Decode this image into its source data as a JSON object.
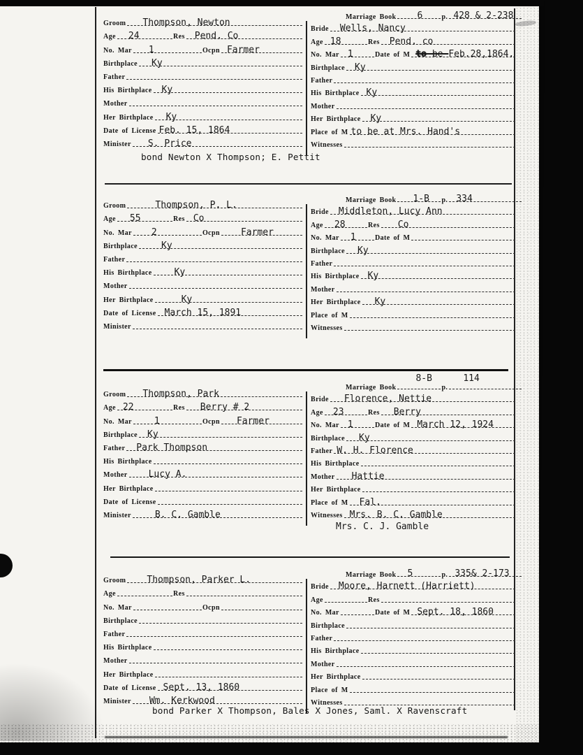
{
  "document_title": "Marriage record index cards",
  "cards": [
    {
      "book": {
        "label": "Marriage Book",
        "number": "6",
        "p_label": "p.",
        "pages": "428 & 2-238",
        "raised": false,
        "num_ind": 28,
        "pages_ind": 6
      },
      "groom_rows": [
        [
          {
            "label": "Groom",
            "value": "Thompson, Newton",
            "ind": 22
          }
        ],
        [
          {
            "label": "Age",
            "value": "24",
            "ind": 16
          },
          {
            "label": "Res",
            "value": "Pend. Co",
            "ind": 12
          }
        ],
        [
          {
            "label": "No. Mar",
            "value": "1",
            "ind": 22
          },
          {
            "label": "Ocpn",
            "value": "Farmer",
            "ind": 8
          }
        ],
        [
          {
            "label": "Birthplace",
            "value": "Ky",
            "ind": 18
          }
        ],
        [
          {
            "label": "Father",
            "value": ""
          }
        ],
        [
          {
            "label": "His Birthplace",
            "value": "Ky",
            "ind": 12
          }
        ],
        [
          {
            "label": "Mother",
            "value": ""
          }
        ],
        [
          {
            "label": "Her Birthplace",
            "value": "Ky",
            "ind": 16
          }
        ],
        [
          {
            "label": "Date of License",
            "value": "Feb. 15, 1864",
            "ind": 2
          }
        ],
        [
          {
            "label": "Minister",
            "value": "S. Price",
            "ind": 22
          }
        ]
      ],
      "bride_rows": [
        [
          {
            "label": "Bride",
            "value": "Wells, Nancy",
            "ind": 14
          }
        ],
        [
          {
            "label": "Age",
            "value": "18",
            "ind": 8
          },
          {
            "label": "Res",
            "value": "Pend. co",
            "ind": 12
          }
        ],
        [
          {
            "label": "No. Mar",
            "value": "1",
            "ind": 10
          },
          {
            "label": "Date of M",
            "parts": [
              {
                "t": "to",
                "strike": true,
                "heavy": true
              },
              {
                "t": " be ",
                "strike": true
              },
              {
                "t": "Feb.28,1864.",
                "strike": false
              }
            ],
            "ind": 6
          }
        ],
        [
          {
            "label": "Birthplace",
            "value": "Ky",
            "ind": 12
          }
        ],
        [
          {
            "label": "Father",
            "value": ""
          }
        ],
        [
          {
            "label": "His Birthplace",
            "value": "Ky",
            "ind": 8
          }
        ],
        [
          {
            "label": "Mother",
            "value": ""
          }
        ],
        [
          {
            "label": "Her Birthplace",
            "value": "Ky",
            "ind": 12
          }
        ],
        [
          {
            "label": "Place of M",
            "value": "to be at Mrs. Hand's",
            "ind": 2
          }
        ],
        [
          {
            "label": "Witnesses",
            "value": ""
          }
        ]
      ],
      "bride_extra": null,
      "note": "bond Newton X Thompson; E. Pettit"
    },
    {
      "book": {
        "label": "Marriage Book",
        "number": "1-B",
        "p_label": "p.",
        "pages": "334",
        "raised": false,
        "num_ind": 22,
        "pages_ind": 10
      },
      "groom_rows": [
        [
          {
            "label": "Groom",
            "value": "Thompson, P. L.",
            "ind": 40
          }
        ],
        [
          {
            "label": "Age",
            "value": "55",
            "ind": 18
          },
          {
            "label": "Res",
            "value": "Co",
            "ind": 10
          }
        ],
        [
          {
            "label": "No. Mar",
            "value": "2",
            "ind": 26
          },
          {
            "label": "Ocpn",
            "value": "Farmer",
            "ind": 28
          }
        ],
        [
          {
            "label": "Birthplace",
            "value": "Ky",
            "ind": 32
          }
        ],
        [
          {
            "label": "Father",
            "value": ""
          }
        ],
        [
          {
            "label": "His Birthplace",
            "value": "Ky",
            "ind": 30
          }
        ],
        [
          {
            "label": "Mother",
            "value": ""
          }
        ],
        [
          {
            "label": "Her Birthplace",
            "value": "Ky",
            "ind": 38
          }
        ],
        [
          {
            "label": "Date of License",
            "value": "March 15, 1891",
            "ind": 10
          }
        ],
        [
          {
            "label": "Minister",
            "value": ""
          }
        ]
      ],
      "bride_rows": [
        [
          {
            "label": "Bride",
            "value": "Middleton, Lucy Ann",
            "ind": 12
          }
        ],
        [
          {
            "label": "Age",
            "value": "28",
            "ind": 14
          },
          {
            "label": "Res",
            "value": "Co",
            "ind": 24
          }
        ],
        [
          {
            "label": "No. Mar",
            "value": "1",
            "ind": 14
          },
          {
            "label": "Date of M",
            "value": ""
          }
        ],
        [
          {
            "label": "Birthplace",
            "value": "Ky",
            "ind": 16
          }
        ],
        [
          {
            "label": "Father",
            "value": ""
          }
        ],
        [
          {
            "label": "His Birthplace",
            "value": "Ky",
            "ind": 10
          }
        ],
        [
          {
            "label": "Mother",
            "value": ""
          }
        ],
        [
          {
            "label": "Her Birthplace",
            "value": "Ky",
            "ind": 18
          }
        ],
        [
          {
            "label": "Place of M",
            "value": ""
          }
        ],
        [
          {
            "label": "Witnesses",
            "value": ""
          }
        ]
      ],
      "bride_extra": null,
      "note": null
    },
    {
      "book": {
        "label": "Marriage Book",
        "number": "8-B",
        "p_label": "p.",
        "pages": "114",
        "raised": true,
        "num_ind": 26,
        "pages_ind": 20
      },
      "groom_rows": [
        [
          {
            "label": "Groom",
            "value": "Thompson, Park",
            "ind": 22
          }
        ],
        [
          {
            "label": "Age",
            "value": "22",
            "ind": 8
          },
          {
            "label": "Res",
            "value": "Berry # 2",
            "ind": 20
          }
        ],
        [
          {
            "label": "No. Mar",
            "value": "1",
            "ind": 30
          },
          {
            "label": "Ocpn",
            "value": "Farmer",
            "ind": 22
          }
        ],
        [
          {
            "label": "Birthplace",
            "value": "Ky",
            "ind": 12
          }
        ],
        [
          {
            "label": "Father",
            "value": "Park Thompson",
            "ind": 14
          }
        ],
        [
          {
            "label": "His Birthplace",
            "value": ""
          }
        ],
        [
          {
            "label": "Mother",
            "value": "Lucy A.",
            "ind": 28
          }
        ],
        [
          {
            "label": "Her Birthplace",
            "value": ""
          }
        ],
        [
          {
            "label": "Date of License",
            "value": ""
          }
        ],
        [
          {
            "label": "Minister",
            "value": "B. C. Gamble",
            "ind": 32
          }
        ]
      ],
      "bride_rows": [
        [
          {
            "label": "Bride",
            "value": "Florence, Nettie",
            "ind": 20
          }
        ],
        [
          {
            "label": "Age",
            "value": "23",
            "ind": 12
          },
          {
            "label": "Res",
            "value": "Berry",
            "ind": 18
          }
        ],
        [
          {
            "label": "No. Mar",
            "value": "1",
            "ind": 10
          },
          {
            "label": "Date of M",
            "value": "March 12, 1924",
            "ind": 8
          }
        ],
        [
          {
            "label": "Birthplace",
            "value": "Ky",
            "ind": 18
          }
        ],
        [
          {
            "label": "Father",
            "value": "W. H. Florence",
            "ind": 4
          }
        ],
        [
          {
            "label": "His Birthplace",
            "value": ""
          }
        ],
        [
          {
            "label": "Mother",
            "value": "Hattie",
            "ind": 22
          }
        ],
        [
          {
            "label": "Her Birthplace",
            "value": ""
          }
        ],
        [
          {
            "label": "Place of M",
            "value": "Fal.",
            "ind": 14
          }
        ],
        [
          {
            "label": "Witnesses",
            "value": "Mrs. B. C. Gamble",
            "ind": 8
          }
        ]
      ],
      "bride_extra": "Mrs. C. J. Gamble",
      "note": null
    },
    {
      "book": {
        "label": "Marriage Book",
        "number": "5",
        "p_label": "p.",
        "pages": "335& 2-173",
        "raised": false,
        "num_ind": 14,
        "pages_ind": 8
      },
      "groom_rows": [
        [
          {
            "label": "Groom",
            "value": "Thompson, Parker L.",
            "ind": 28
          }
        ],
        [
          {
            "label": "Age",
            "value": ""
          },
          {
            "label": "Res",
            "value": ""
          }
        ],
        [
          {
            "label": "No. Mar",
            "value": ""
          },
          {
            "label": "Ocpn",
            "value": ""
          }
        ],
        [
          {
            "label": "Birthplace",
            "value": ""
          }
        ],
        [
          {
            "label": "Father",
            "value": ""
          }
        ],
        [
          {
            "label": "His Birthplace",
            "value": ""
          }
        ],
        [
          {
            "label": "Mother",
            "value": ""
          }
        ],
        [
          {
            "label": "Her Birthplace",
            "value": ""
          }
        ],
        [
          {
            "label": "Date of License",
            "value": "Sept. 13, 1860",
            "ind": 8
          }
        ],
        [
          {
            "label": "Minister",
            "value": "Wm. Kerkwood",
            "ind": 24
          }
        ]
      ],
      "bride_rows": [
        [
          {
            "label": "Bride",
            "value": "Moore, Harnett (Harriett)",
            "ind": 12
          }
        ],
        [
          {
            "label": "Age",
            "value": ""
          },
          {
            "label": "Res",
            "value": ""
          }
        ],
        [
          {
            "label": "No. Mar",
            "value": ""
          },
          {
            "label": "Date of M",
            "value": "Sept. 18, 1860",
            "ind": 8
          }
        ],
        [
          {
            "label": "Birthplace",
            "value": ""
          }
        ],
        [
          {
            "label": "Father",
            "value": ""
          }
        ],
        [
          {
            "label": "His Birthplace",
            "value": ""
          }
        ],
        [
          {
            "label": "Mother",
            "value": ""
          }
        ],
        [
          {
            "label": "Her Birthplace",
            "value": ""
          }
        ],
        [
          {
            "label": "Place of M",
            "value": ""
          }
        ],
        [
          {
            "label": "Witnesses",
            "value": ""
          }
        ]
      ],
      "bride_extra": null,
      "note": "bond Parker X Thompson, Bales X Jones, Saml. X Ravenscraft"
    }
  ],
  "colors": {
    "paper": "#f5f4f0",
    "ink": "#191919",
    "scan_black": "#070707"
  }
}
